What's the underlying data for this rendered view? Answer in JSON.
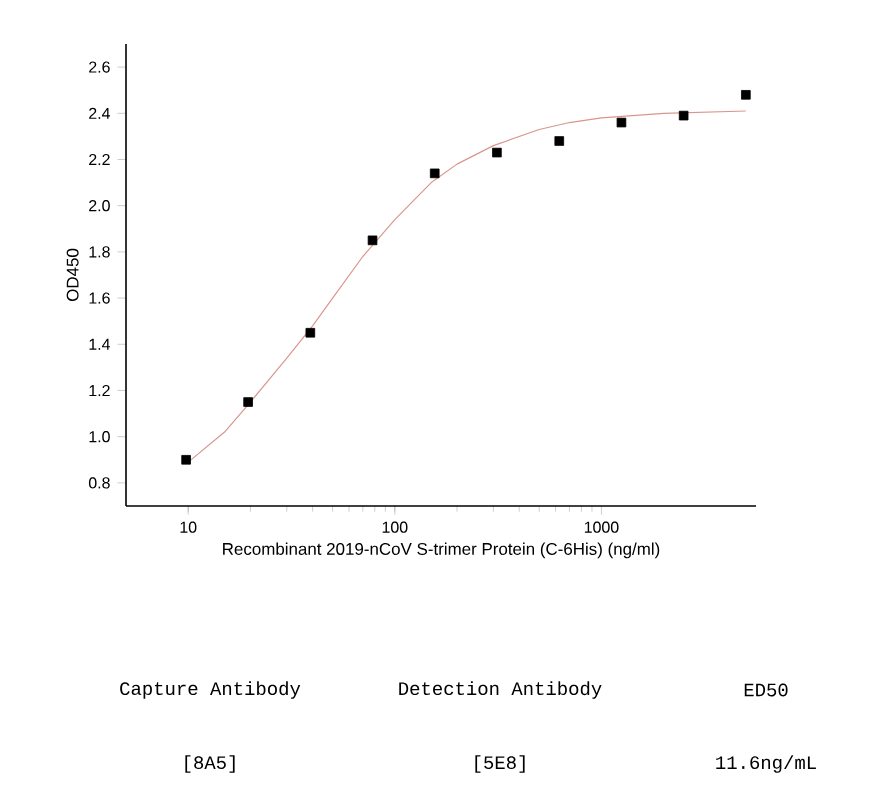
{
  "chart_data": {
    "type": "scatter",
    "xlabel": "Recombinant 2019-nCoV S-trimer Protein (C-6His) (ng/ml)",
    "ylabel": "OD450",
    "log": "x",
    "xlim": [
      5,
      5600
    ],
    "ylim": [
      0.7,
      2.7
    ],
    "xticks": [
      10,
      100,
      1000
    ],
    "yticks": [
      0.8,
      {
        "value": 1,
        "label": "1.0"
      },
      1.2,
      1.4,
      1.6,
      1.8,
      {
        "value": 2,
        "label": "2.0"
      },
      2.2,
      2.4,
      2.6
    ],
    "series": [
      {
        "marker": "square",
        "color": "#000000",
        "x": [
          9.77,
          19.5,
          39,
          78,
          156,
          312,
          625,
          1250,
          2500,
          5000
        ],
        "values": [
          0.9,
          1.15,
          1.45,
          1.85,
          2.14,
          2.23,
          2.28,
          2.36,
          2.39,
          2.48
        ]
      },
      {
        "type": "line",
        "marker": "none",
        "color": "#d9968f",
        "x": [
          10,
          15,
          20,
          30,
          40,
          50,
          70,
          100,
          150,
          200,
          300,
          500,
          700,
          1000,
          2000,
          5000
        ],
        "values": [
          0.89,
          1.02,
          1.15,
          1.34,
          1.48,
          1.6,
          1.78,
          1.94,
          2.1,
          2.18,
          2.26,
          2.33,
          2.36,
          2.38,
          2.4,
          2.41
        ]
      }
    ],
    "annotations": [
      "Capture Antibody",
      "Detection Antibody",
      "ED50",
      "[8A5]",
      "[5E8]",
      "11.6ng/mL"
    ]
  }
}
